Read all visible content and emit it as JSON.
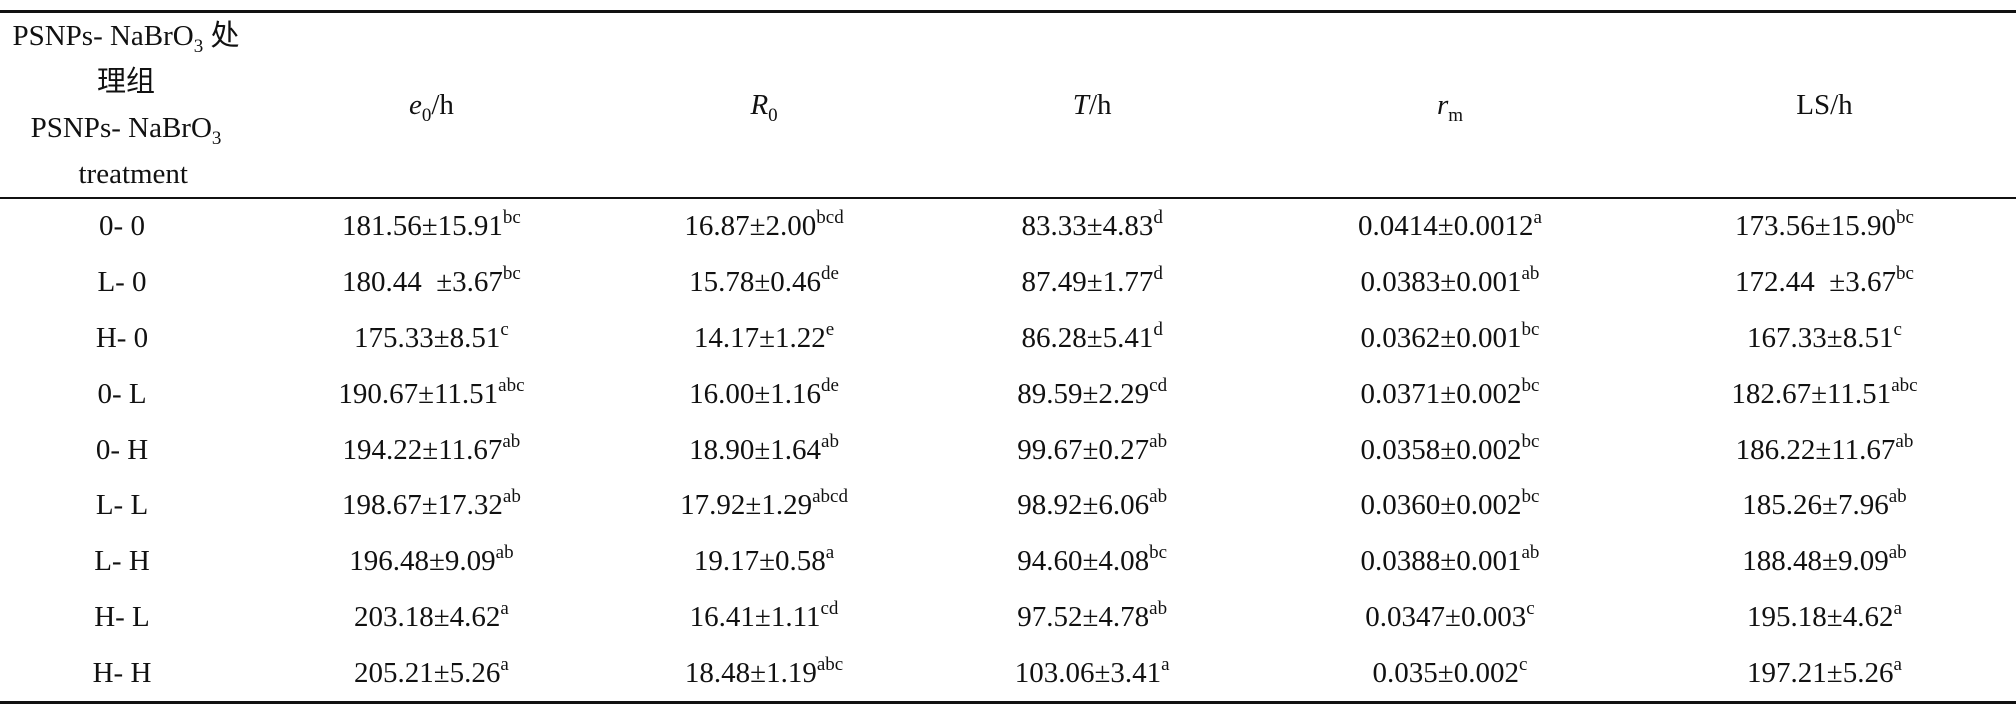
{
  "table": {
    "header": {
      "group_line1_prefix": "PSNPs- NaBrO",
      "group_line1_sub": "3",
      "group_line1_suffix": " 处理组",
      "group_line2_prefix": "PSNPs- NaBrO",
      "group_line2_sub": "3",
      "group_line2_suffix": "  treatment",
      "e0_main": "e",
      "e0_sub": "0",
      "e0_unit": "/h",
      "r0_main": "R",
      "r0_sub": "0",
      "t_main": "T",
      "t_unit": "/h",
      "rm_main": "r",
      "rm_sub": "m",
      "ls": "LS/h"
    },
    "rows": [
      {
        "group": "0- 0",
        "e0": "181.56±15.91",
        "e0_sig": "bc",
        "r0": "16.87±2.00",
        "r0_sig": "bcd",
        "t": "83.33±4.83",
        "t_sig": "d",
        "rm": "0.0414±0.0012",
        "rm_sig": "a",
        "ls": "173.56±15.90",
        "ls_sig": "bc"
      },
      {
        "group": "L- 0",
        "e0": "180.44  ±3.67",
        "e0_sig": "bc",
        "r0": "15.78±0.46",
        "r0_sig": "de",
        "t": "87.49±1.77",
        "t_sig": "d",
        "rm": "0.0383±0.001",
        "rm_sig": "ab",
        "ls": "172.44  ±3.67",
        "ls_sig": "bc"
      },
      {
        "group": "H- 0",
        "e0": "175.33±8.51",
        "e0_sig": "c",
        "r0": "14.17±1.22",
        "r0_sig": "e",
        "t": "86.28±5.41",
        "t_sig": "d",
        "rm": "0.0362±0.001",
        "rm_sig": "bc",
        "ls": "167.33±8.51",
        "ls_sig": "c"
      },
      {
        "group": "0- L",
        "e0": "190.67±11.51",
        "e0_sig": "abc",
        "r0": "16.00±1.16",
        "r0_sig": "de",
        "t": "89.59±2.29",
        "t_sig": "cd",
        "rm": "0.0371±0.002",
        "rm_sig": "bc",
        "ls": "182.67±11.51",
        "ls_sig": "abc"
      },
      {
        "group": "0- H",
        "e0": "194.22±11.67",
        "e0_sig": "ab",
        "r0": "18.90±1.64",
        "r0_sig": "ab",
        "t": "99.67±0.27",
        "t_sig": "ab",
        "rm": "0.0358±0.002",
        "rm_sig": "bc",
        "ls": "186.22±11.67",
        "ls_sig": "ab"
      },
      {
        "group": "L- L",
        "e0": "198.67±17.32",
        "e0_sig": "ab",
        "r0": "17.92±1.29",
        "r0_sig": "abcd",
        "t": "98.92±6.06",
        "t_sig": "ab",
        "rm": "0.0360±0.002",
        "rm_sig": "bc",
        "ls": "185.26±7.96",
        "ls_sig": "ab"
      },
      {
        "group": "L- H",
        "e0": "196.48±9.09",
        "e0_sig": "ab",
        "r0": "19.17±0.58",
        "r0_sig": "a",
        "t": "94.60±4.08",
        "t_sig": "bc",
        "rm": "0.0388±0.001",
        "rm_sig": "ab",
        "ls": "188.48±9.09",
        "ls_sig": "ab"
      },
      {
        "group": "H- L",
        "e0": "203.18±4.62",
        "e0_sig": "a",
        "r0": "16.41±1.11",
        "r0_sig": "cd",
        "t": "97.52±4.78",
        "t_sig": "ab",
        "rm": "0.0347±0.003",
        "rm_sig": "c",
        "ls": "195.18±4.62",
        "ls_sig": "a"
      },
      {
        "group": "H- H",
        "e0": "205.21±5.26",
        "e0_sig": "a",
        "r0": "18.48±1.19",
        "r0_sig": "abc",
        "t": "103.06±3.41",
        "t_sig": "a",
        "rm": "0.035±0.002",
        "rm_sig": "c",
        "ls": "197.21±5.26",
        "ls_sig": "a"
      }
    ]
  }
}
